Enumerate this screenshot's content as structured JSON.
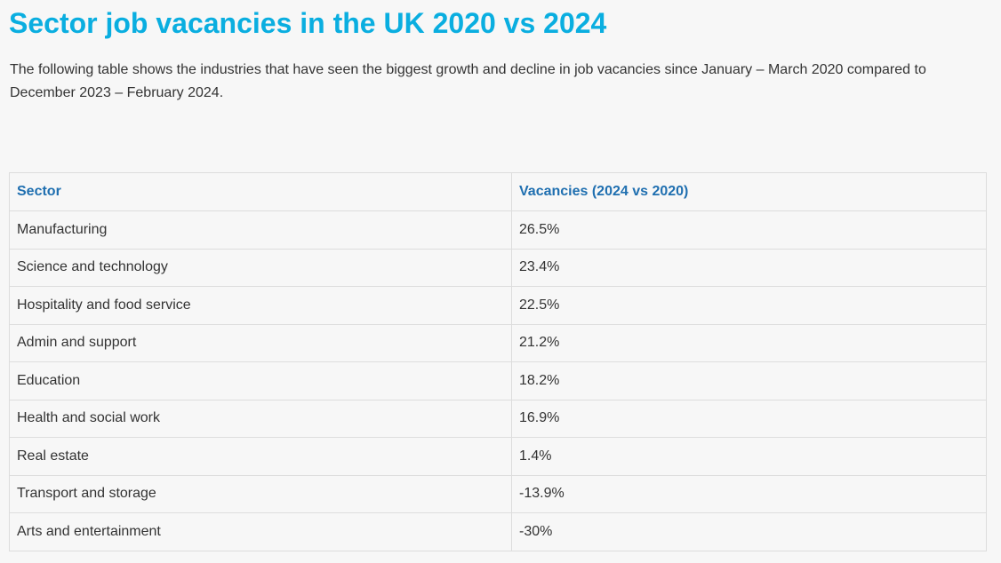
{
  "title": "Sector job vacancies in the UK 2020 vs 2024",
  "intro": "The following table shows the industries that have seen the biggest growth and decline in job vacancies since January – March 2020 compared to December 2023 – February 2024.",
  "table": {
    "headers": [
      "Sector",
      "Vacancies (2024 vs 2020)"
    ],
    "rows": [
      {
        "sector": "Manufacturing",
        "change": "26.5%"
      },
      {
        "sector": "Science and technology",
        "change": "23.4%"
      },
      {
        "sector": "Hospitality and food service",
        "change": "22.5%"
      },
      {
        "sector": "Admin and support",
        "change": "21.2%"
      },
      {
        "sector": "Education",
        "change": "18.2%"
      },
      {
        "sector": "Health and social work",
        "change": "16.9%"
      },
      {
        "sector": "Real estate",
        "change": "1.4%"
      },
      {
        "sector": "Transport and storage",
        "change": "-13.9%"
      },
      {
        "sector": "Arts and entertainment",
        "change": "-30%"
      }
    ]
  },
  "colors": {
    "title": "#0aaee0",
    "header_text": "#1f6fb0",
    "body_text": "#333333",
    "border": "#dddddd",
    "background": "#f7f7f7"
  }
}
